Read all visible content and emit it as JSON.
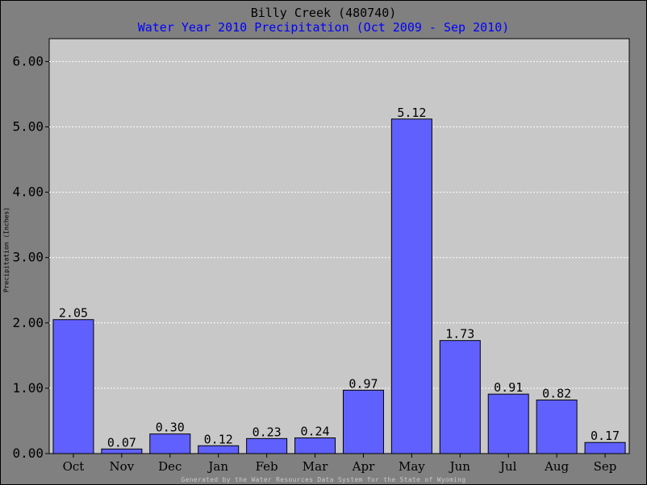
{
  "chart_data": {
    "type": "bar",
    "title": "Billy Creek (480740)",
    "subtitle": "Water Year 2010 Precipitation (Oct 2009 - Sep 2010)",
    "ylabel": "Precipitation (Inches)",
    "xlabel": "",
    "categories": [
      "Oct",
      "Nov",
      "Dec",
      "Jan",
      "Feb",
      "Mar",
      "Apr",
      "May",
      "Jun",
      "Jul",
      "Aug",
      "Sep"
    ],
    "values": [
      2.05,
      0.07,
      0.3,
      0.12,
      0.23,
      0.24,
      0.97,
      5.12,
      1.73,
      0.91,
      0.82,
      0.17
    ],
    "value_labels": [
      "2.05",
      "0.07",
      "0.30",
      "0.12",
      "0.23",
      "0.24",
      "0.97",
      "5.12",
      "1.73",
      "0.91",
      "0.82",
      "0.17"
    ],
    "ylim": [
      0,
      6.35
    ],
    "yticks": [
      0,
      1,
      2,
      3,
      4,
      5,
      6
    ],
    "ytick_labels": [
      "0.00",
      "1.00",
      "2.00",
      "3.00",
      "4.00",
      "5.00",
      "6.00"
    ],
    "grid": true,
    "bar_color": "#6060ff",
    "plot_background": "#c8c8c8",
    "title_color": "#000000",
    "subtitle_color": "#0000ff"
  },
  "footer": "Generated by the Water Resources Data System for the State of Wyoming"
}
